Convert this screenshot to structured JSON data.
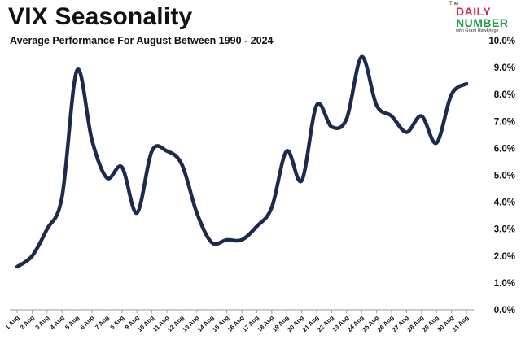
{
  "header": {
    "title": "VIX Seasonality",
    "subtitle": "Average Performance For August Between 1990 - 2024"
  },
  "logo": {
    "the": "The",
    "line1": "DAILY",
    "line2": "NUMBER",
    "line3": "with Grant Hawkridge",
    "colors": {
      "primary": "#d32a4b",
      "secondary": "#20a046"
    }
  },
  "colors": {
    "line": "#1b2a4e",
    "axis": "#999999"
  },
  "chart_data": {
    "type": "line",
    "title": "VIX Seasonality",
    "subtitle": "Average Performance For August Between 1990 - 2024",
    "xlabel": "",
    "ylabel": "",
    "ylim": [
      0,
      10
    ],
    "y_axis_position": "right",
    "y_tick_values": [
      0,
      1,
      2,
      3,
      4,
      5,
      6,
      7,
      8,
      9,
      10
    ],
    "y_tick_labels": [
      "0.0%",
      "1.0%",
      "2.0%",
      "3.0%",
      "4.0%",
      "5.0%",
      "6.0%",
      "7.0%",
      "8.0%",
      "9.0%",
      "10.0%"
    ],
    "grid": false,
    "categories": [
      "1 Aug",
      "2 Aug",
      "3 Aug",
      "4 Aug",
      "5 Aug",
      "6 Aug",
      "7 Aug",
      "8 Aug",
      "9 Aug",
      "10 Aug",
      "11 Aug",
      "12 Aug",
      "13 Aug",
      "14 Aug",
      "15 Aug",
      "16 Aug",
      "17 Aug",
      "18 Aug",
      "19 Aug",
      "20 Aug",
      "21 Aug",
      "22 Aug",
      "23 Aug",
      "24 Aug",
      "25 Aug",
      "26 Aug",
      "27 Aug",
      "28 Aug",
      "29 Aug",
      "30 Aug",
      "31 Aug"
    ],
    "series": [
      {
        "values": [
          1.6,
          2.0,
          3.0,
          4.2,
          8.9,
          6.3,
          4.9,
          5.3,
          3.6,
          5.9,
          5.9,
          5.4,
          3.6,
          2.5,
          2.6,
          2.6,
          3.1,
          3.8,
          5.9,
          4.8,
          7.6,
          6.8,
          7.1,
          9.4,
          7.6,
          7.2,
          6.6,
          7.2,
          6.2,
          8.0,
          8.4
        ]
      }
    ]
  }
}
